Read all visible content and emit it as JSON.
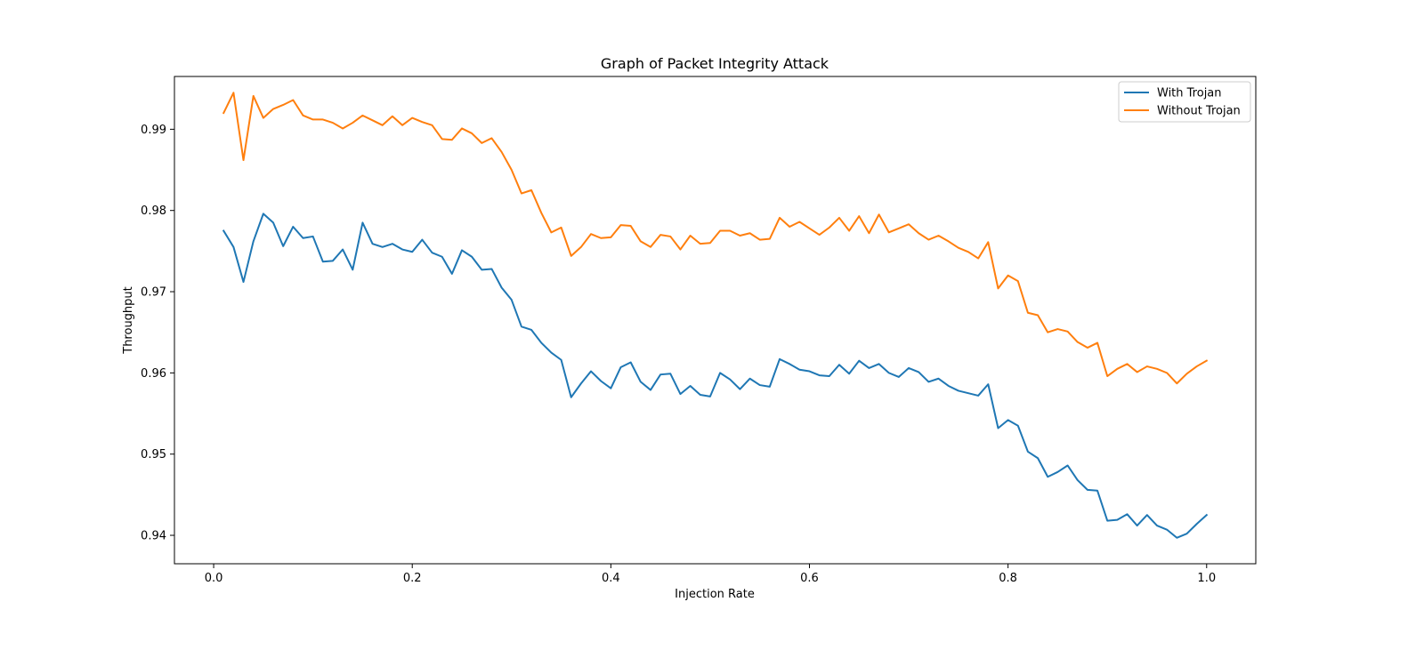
{
  "chart_data": {
    "type": "line",
    "title": "Graph of Packet Integrity Attack",
    "xlabel": "Injection Rate",
    "ylabel": "Throughput",
    "xlim": [
      -0.0395,
      1.0495
    ],
    "ylim": [
      0.9365,
      0.9965
    ],
    "x_ticks": [
      0.0,
      0.2,
      0.4,
      0.6,
      0.8,
      1.0
    ],
    "x_tick_labels": [
      "0.0",
      "0.2",
      "0.4",
      "0.6",
      "0.8",
      "1.0"
    ],
    "y_ticks": [
      0.94,
      0.95,
      0.96,
      0.97,
      0.98,
      0.99
    ],
    "y_tick_labels": [
      "0.94",
      "0.95",
      "0.96",
      "0.97",
      "0.98",
      "0.99"
    ],
    "grid": false,
    "legend_position": "top-right",
    "x": [
      0.01,
      0.02,
      0.03,
      0.04,
      0.05,
      0.06,
      0.07,
      0.08,
      0.09,
      0.1,
      0.11,
      0.12,
      0.13,
      0.14,
      0.15,
      0.16,
      0.17,
      0.18,
      0.19,
      0.2,
      0.21,
      0.22,
      0.23,
      0.24,
      0.25,
      0.26,
      0.27,
      0.28,
      0.29,
      0.3,
      0.31,
      0.32,
      0.33,
      0.34,
      0.35,
      0.36,
      0.37,
      0.38,
      0.39,
      0.4,
      0.41,
      0.42,
      0.43,
      0.44,
      0.45,
      0.46,
      0.47,
      0.48,
      0.49,
      0.5,
      0.51,
      0.52,
      0.53,
      0.54,
      0.55,
      0.56,
      0.57,
      0.58,
      0.59,
      0.6,
      0.61,
      0.62,
      0.63,
      0.64,
      0.65,
      0.66,
      0.67,
      0.68,
      0.69,
      0.7,
      0.71,
      0.72,
      0.73,
      0.74,
      0.75,
      0.76,
      0.77,
      0.78,
      0.79,
      0.8,
      0.81,
      0.82,
      0.83,
      0.84,
      0.85,
      0.86,
      0.87,
      0.88,
      0.89,
      0.9,
      0.91,
      0.92,
      0.93,
      0.94,
      0.95,
      0.96,
      0.97,
      0.98,
      0.99,
      1.0
    ],
    "series": [
      {
        "name": "With Trojan",
        "color": "#1f77b4",
        "values": [
          0.9775,
          0.9755,
          0.9712,
          0.9762,
          0.9796,
          0.9785,
          0.9756,
          0.978,
          0.9766,
          0.9768,
          0.9737,
          0.9738,
          0.9752,
          0.9727,
          0.9785,
          0.9759,
          0.9755,
          0.9759,
          0.9752,
          0.9749,
          0.9764,
          0.9748,
          0.9743,
          0.9722,
          0.9751,
          0.9743,
          0.9727,
          0.9728,
          0.9705,
          0.969,
          0.9657,
          0.9653,
          0.9637,
          0.9625,
          0.9616,
          0.957,
          0.9587,
          0.9602,
          0.959,
          0.9581,
          0.9607,
          0.9613,
          0.9589,
          0.9579,
          0.9598,
          0.9599,
          0.9574,
          0.9584,
          0.9573,
          0.9571,
          0.96,
          0.9592,
          0.958,
          0.9593,
          0.9585,
          0.9583,
          0.9617,
          0.9611,
          0.9604,
          0.9602,
          0.9597,
          0.9596,
          0.961,
          0.9599,
          0.9615,
          0.9606,
          0.9611,
          0.96,
          0.9595,
          0.9606,
          0.9601,
          0.9589,
          0.9593,
          0.9584,
          0.9578,
          0.9575,
          0.9572,
          0.9586,
          0.9532,
          0.9542,
          0.9535,
          0.9503,
          0.9495,
          0.9472,
          0.9478,
          0.9486,
          0.9468,
          0.9456,
          0.9455,
          0.9418,
          0.9419,
          0.9426,
          0.9412,
          0.9425,
          0.9412,
          0.9407,
          0.9397,
          0.9402,
          0.9414,
          0.9425
        ]
      },
      {
        "name": "Without Trojan",
        "color": "#ff7f0e",
        "values": [
          0.992,
          0.9945,
          0.9862,
          0.9941,
          0.9914,
          0.9925,
          0.993,
          0.9936,
          0.9917,
          0.9912,
          0.9912,
          0.9908,
          0.9901,
          0.9908,
          0.9917,
          0.9911,
          0.9905,
          0.9916,
          0.9905,
          0.9914,
          0.9909,
          0.9905,
          0.9888,
          0.9887,
          0.9901,
          0.9895,
          0.9883,
          0.9889,
          0.9872,
          0.985,
          0.9821,
          0.9825,
          0.9797,
          0.9773,
          0.9779,
          0.9744,
          0.9755,
          0.9771,
          0.9766,
          0.9767,
          0.9782,
          0.9781,
          0.9762,
          0.9755,
          0.977,
          0.9768,
          0.9752,
          0.9769,
          0.9759,
          0.976,
          0.9775,
          0.9775,
          0.9769,
          0.9772,
          0.9764,
          0.9765,
          0.9791,
          0.978,
          0.9786,
          0.9778,
          0.977,
          0.9779,
          0.9791,
          0.9775,
          0.9793,
          0.9772,
          0.9795,
          0.9773,
          0.9778,
          0.9783,
          0.9772,
          0.9764,
          0.9769,
          0.9762,
          0.9754,
          0.9749,
          0.9741,
          0.9761,
          0.9704,
          0.972,
          0.9713,
          0.9674,
          0.9671,
          0.965,
          0.9654,
          0.9651,
          0.9638,
          0.9631,
          0.9637,
          0.9596,
          0.9605,
          0.9611,
          0.9601,
          0.9608,
          0.9605,
          0.96,
          0.9587,
          0.9599,
          0.9608,
          0.9615
        ]
      }
    ]
  }
}
